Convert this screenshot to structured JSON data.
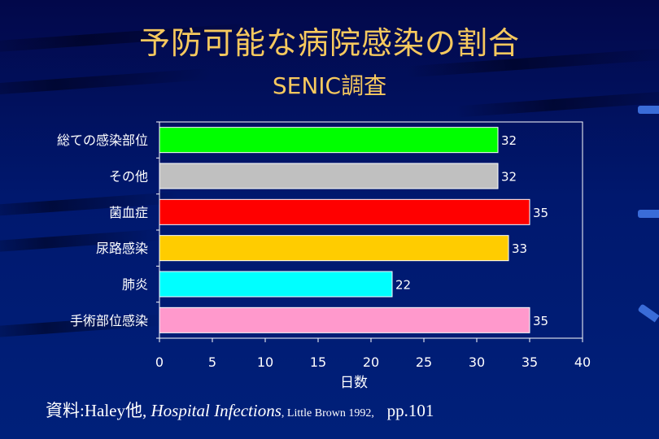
{
  "title": "予防可能な病院感染の割合",
  "subtitle": "SENIC調査",
  "chart_data": {
    "type": "bar",
    "orientation": "horizontal",
    "categories": [
      "総ての感染部位",
      "その他",
      "菌血症",
      "尿路感染",
      "肺炎",
      "手術部位感染"
    ],
    "values": [
      32,
      32,
      35,
      33,
      22,
      35
    ],
    "colors": [
      "#00ff00",
      "#c0c0c0",
      "#ff0000",
      "#ffcc00",
      "#00ffff",
      "#ff99cc"
    ],
    "xticks": [
      0,
      5,
      10,
      15,
      20,
      25,
      30,
      35,
      40
    ],
    "xlim": [
      0,
      40
    ],
    "xlabel": "日数",
    "ylabel": "",
    "grid": false,
    "data_labels": true
  },
  "source": {
    "label": "資料:",
    "authors": "Haley他,",
    "work": "Hospital Infections",
    "publisher": ", Little Brown 1992,",
    "pages": "pp.101"
  }
}
